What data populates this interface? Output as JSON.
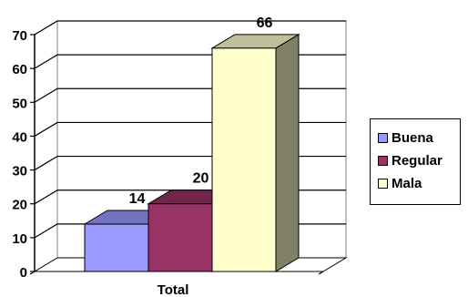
{
  "chart_data": {
    "type": "bar",
    "categories": [
      "Total"
    ],
    "series": [
      {
        "name": "Buena",
        "values": [
          14
        ],
        "color": "#9999ff"
      },
      {
        "name": "Regular",
        "values": [
          20
        ],
        "color": "#993366"
      },
      {
        "name": "Mala",
        "values": [
          66
        ],
        "color": "#ffffcc"
      }
    ],
    "xlabel": "Total",
    "ylim": [
      0,
      70
    ],
    "yticks": [
      0,
      10,
      20,
      30,
      40,
      50,
      60,
      70
    ],
    "grid": true,
    "legend": "right",
    "style": "3d"
  }
}
